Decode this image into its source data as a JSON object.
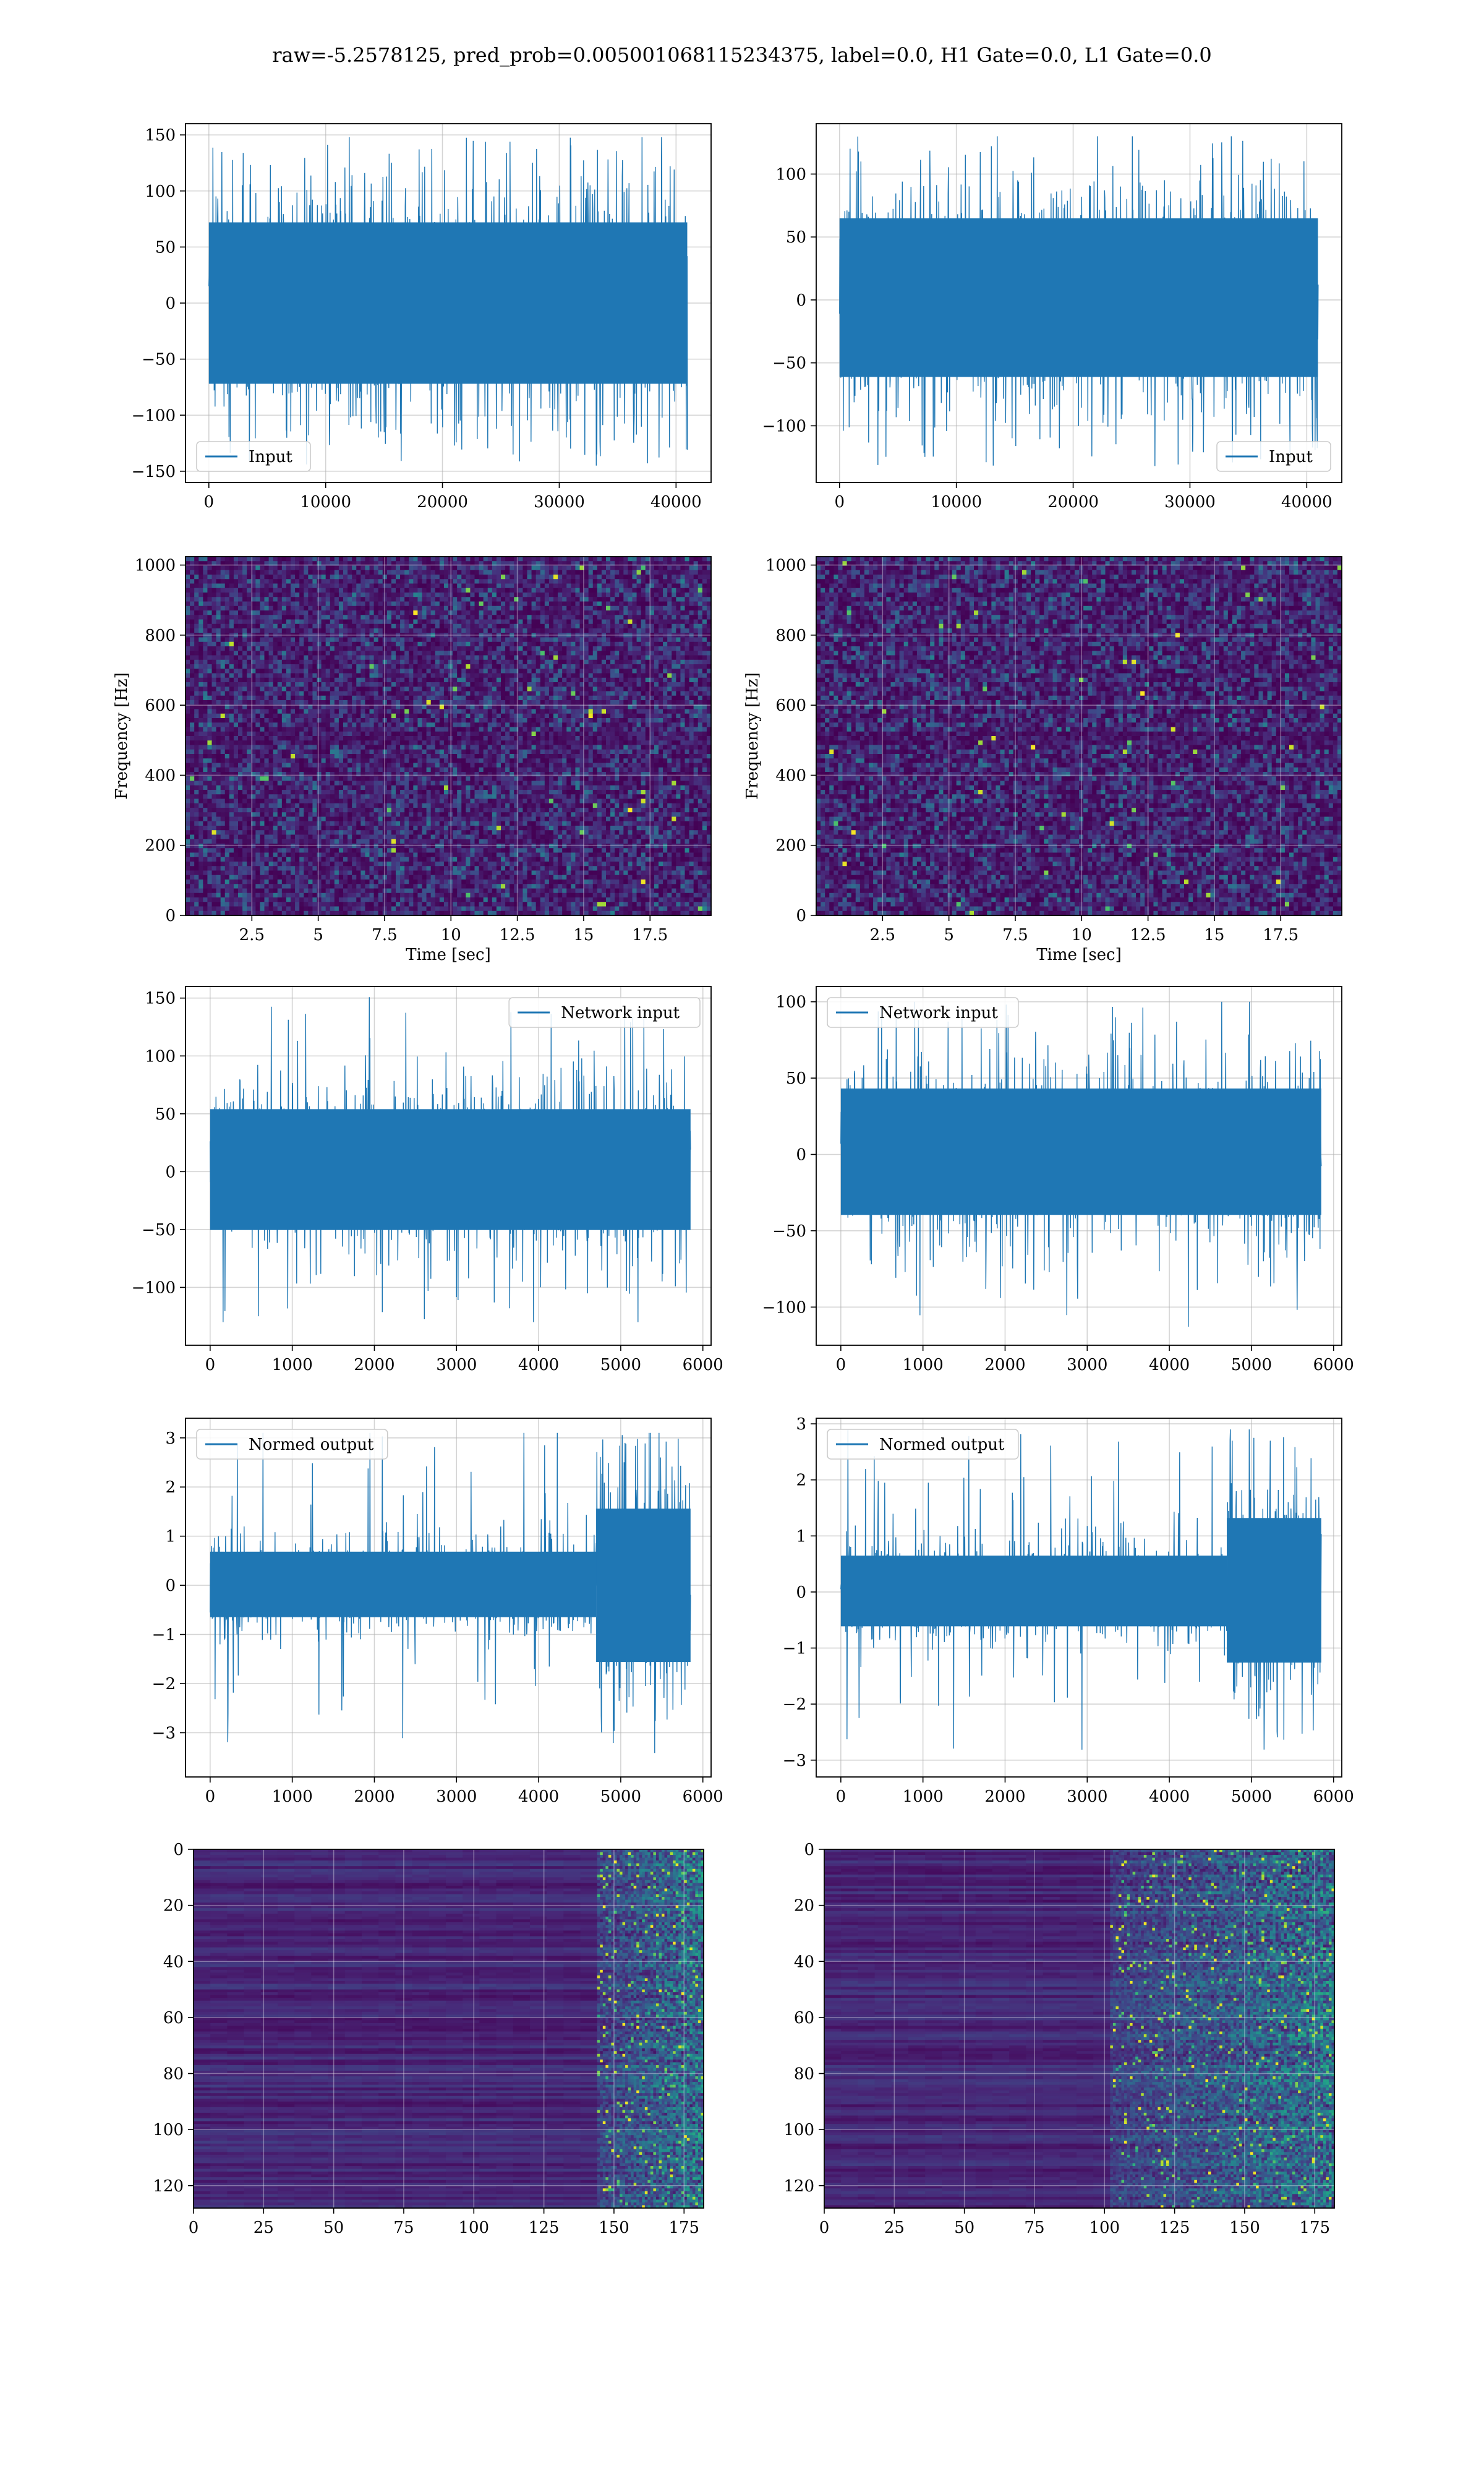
{
  "suptitle": "raw=-5.2578125, pred_prob=0.005001068115234375, label=0.0, H1 Gate=0.0, L1 Gate=0.0",
  "colors": {
    "signal": "#1f77b4",
    "grid": "#b0b0b0",
    "viridis_low": "#440154",
    "viridis_mid": "#21918c",
    "viridis_high": "#fde725"
  },
  "chart_data": [
    {
      "id": "input-h1",
      "type": "line",
      "xlabel": "",
      "ylabel": "",
      "xlim": [
        -2000,
        43000
      ],
      "ylim": [
        -160,
        160
      ],
      "xticks": [
        0,
        10000,
        20000,
        30000,
        40000
      ],
      "yticks": [
        -150,
        -100,
        -50,
        0,
        50,
        100,
        150
      ],
      "legend": "Input",
      "legend_loc": "lower left",
      "grid": true,
      "series": [
        {
          "name": "Input",
          "n_points": 40960,
          "x_start": 0,
          "x_end": 40960,
          "envelope": [
            -100,
            100
          ],
          "peak": [
            -145,
            148
          ]
        }
      ]
    },
    {
      "id": "input-l1",
      "type": "line",
      "xlabel": "",
      "ylabel": "",
      "xlim": [
        -2000,
        43000
      ],
      "ylim": [
        -145,
        140
      ],
      "xticks": [
        0,
        10000,
        20000,
        30000,
        40000
      ],
      "yticks": [
        -100,
        -50,
        0,
        50,
        100
      ],
      "legend": "Input",
      "legend_loc": "lower right",
      "grid": true,
      "series": [
        {
          "name": "Input",
          "n_points": 40960,
          "x_start": 0,
          "x_end": 40960,
          "envelope": [
            -85,
            90
          ],
          "peak": [
            -132,
            130
          ]
        }
      ]
    },
    {
      "id": "spectrogram-h1",
      "type": "heatmap",
      "xlabel": "Time [sec]",
      "ylabel": "Frequency [Hz]",
      "xlim": [
        0,
        19.8
      ],
      "ylim": [
        0,
        1024
      ],
      "xticks": [
        2.5,
        5.0,
        7.5,
        10.0,
        12.5,
        15.0,
        17.5
      ],
      "yticks": [
        0,
        200,
        400,
        600,
        800,
        1000
      ],
      "colormap": "viridis",
      "grid": true,
      "pattern": "uniform noise, weak band near 500 Hz"
    },
    {
      "id": "spectrogram-l1",
      "type": "heatmap",
      "xlabel": "Time [sec]",
      "ylabel": "Frequency [Hz]",
      "xlim": [
        0,
        19.8
      ],
      "ylim": [
        0,
        1024
      ],
      "xticks": [
        2.5,
        5.0,
        7.5,
        10.0,
        12.5,
        15.0,
        17.5
      ],
      "yticks": [
        0,
        200,
        400,
        600,
        800,
        1000
      ],
      "colormap": "viridis",
      "grid": true,
      "pattern": "uniform noise, weak band near 500 Hz"
    },
    {
      "id": "network-input-h1",
      "type": "line",
      "xlabel": "",
      "ylabel": "",
      "xlim": [
        -300,
        6100
      ],
      "ylim": [
        -150,
        160
      ],
      "xticks": [
        0,
        1000,
        2000,
        3000,
        4000,
        5000,
        6000
      ],
      "yticks": [
        -100,
        -50,
        0,
        50,
        100,
        150
      ],
      "legend": "Network input",
      "legend_loc": "upper right",
      "grid": true,
      "series": [
        {
          "name": "Network input",
          "n_points": 5850,
          "x_start": 0,
          "x_end": 5850,
          "envelope": [
            -70,
            75
          ],
          "peak": [
            -130,
            152
          ]
        }
      ]
    },
    {
      "id": "network-input-l1",
      "type": "line",
      "xlabel": "",
      "ylabel": "",
      "xlim": [
        -300,
        6100
      ],
      "ylim": [
        -125,
        110
      ],
      "xticks": [
        0,
        1000,
        2000,
        3000,
        4000,
        5000,
        6000
      ],
      "yticks": [
        -100,
        -50,
        0,
        50,
        100
      ],
      "legend": "Network input",
      "legend_loc": "upper left",
      "grid": true,
      "series": [
        {
          "name": "Network input",
          "n_points": 5850,
          "x_start": 0,
          "x_end": 5850,
          "envelope": [
            -55,
            60
          ],
          "peak": [
            -118,
            100
          ]
        }
      ]
    },
    {
      "id": "normed-output-h1",
      "type": "line",
      "xlabel": "",
      "ylabel": "",
      "xlim": [
        -300,
        6100
      ],
      "ylim": [
        -3.9,
        3.4
      ],
      "xticks": [
        0,
        1000,
        2000,
        3000,
        4000,
        5000,
        6000
      ],
      "yticks": [
        -3,
        -2,
        -1,
        0,
        1,
        2,
        3
      ],
      "legend": "Normed output",
      "legend_loc": "upper left",
      "grid": true,
      "series": [
        {
          "name": "Normed output",
          "n_points": 5850,
          "x_start": 0,
          "x_end": 5850,
          "envelope": [
            -0.9,
            0.95
          ],
          "burst_start": 4700,
          "burst_envelope": [
            -2.6,
            2.6
          ],
          "peak": [
            -3.6,
            3.1
          ]
        }
      ]
    },
    {
      "id": "normed-output-l1",
      "type": "line",
      "xlabel": "",
      "ylabel": "",
      "xlim": [
        -300,
        6100
      ],
      "ylim": [
        -3.3,
        3.1
      ],
      "xticks": [
        0,
        1000,
        2000,
        3000,
        4000,
        5000,
        6000
      ],
      "yticks": [
        -3,
        -2,
        -1,
        0,
        1,
        2,
        3
      ],
      "legend": "Normed output",
      "legend_loc": "upper left",
      "grid": true,
      "series": [
        {
          "name": "Normed output",
          "n_points": 5850,
          "x_start": 0,
          "x_end": 5850,
          "envelope": [
            -0.85,
            0.9
          ],
          "burst_start": 4700,
          "burst_envelope": [
            -2.1,
            2.2
          ],
          "peak": [
            -3.0,
            2.9
          ]
        }
      ]
    },
    {
      "id": "feature-map-h1",
      "type": "heatmap",
      "xlabel": "",
      "ylabel": "",
      "xlim": [
        0,
        182
      ],
      "ylim": [
        128,
        0
      ],
      "xticks": [
        0,
        25,
        50,
        75,
        100,
        125,
        150,
        175
      ],
      "yticks": [
        0,
        20,
        40,
        60,
        80,
        100,
        120
      ],
      "colormap": "viridis",
      "grid": true,
      "active_from_column": 140
    },
    {
      "id": "feature-map-l1",
      "type": "heatmap",
      "xlabel": "",
      "ylabel": "",
      "xlim": [
        0,
        182
      ],
      "ylim": [
        128,
        0
      ],
      "xticks": [
        0,
        25,
        50,
        75,
        100,
        125,
        150,
        175
      ],
      "yticks": [
        0,
        20,
        40,
        60,
        80,
        100,
        120
      ],
      "colormap": "viridis",
      "grid": true,
      "active_from_column": 100
    }
  ]
}
